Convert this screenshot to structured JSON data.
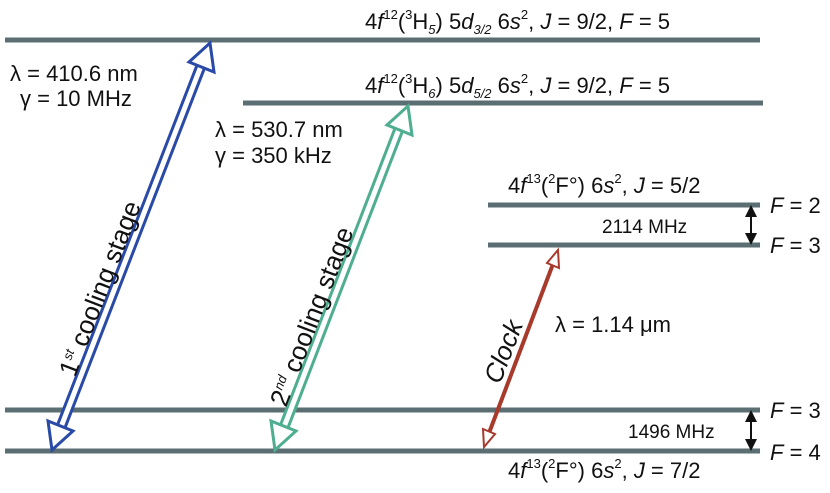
{
  "levels": [
    {
      "label": [
        "4",
        "f",
        "12",
        "(",
        "3",
        "H",
        "5",
        ") 5",
        "d",
        "3/2",
        " 6",
        "s",
        "2",
        ", ",
        "J",
        " = 9/2, ",
        "F",
        " = 5"
      ]
    },
    {
      "label": [
        "4",
        "f",
        "12",
        "(",
        "3",
        "H",
        "6",
        ") 5",
        "d",
        "5/2",
        " 6",
        "s",
        "2",
        ", ",
        "J",
        " = 9/2, ",
        "F",
        " = 5"
      ]
    },
    {
      "label": [
        "4",
        "f",
        "13",
        "(",
        "2",
        "F°",
        ") 6",
        "s",
        "2",
        ", ",
        "J",
        " = 5/2"
      ]
    },
    {
      "label": [
        "4",
        "f",
        "13",
        "(",
        "2",
        "F°",
        ") 6",
        "s",
        "2",
        ", ",
        "J",
        " = 7/2"
      ]
    }
  ],
  "hyperfine": [
    {
      "label": [
        "F",
        " = 2"
      ]
    },
    {
      "label": [
        "F",
        " = 3"
      ]
    },
    {
      "label": [
        "F",
        " = 3"
      ]
    },
    {
      "label": [
        "F",
        " = 4"
      ]
    }
  ],
  "splittings": [
    "2114 MHz",
    "1496 MHz"
  ],
  "transitions": [
    {
      "name": [
        "1",
        "st",
        " cooling stage"
      ],
      "wavelength": "λ = 410.6 nm",
      "linewidth": "γ = 10 MHz"
    },
    {
      "name": [
        "2",
        "nd",
        " cooling stage"
      ],
      "wavelength": "λ = 530.7 nm",
      "linewidth": "γ = 350 kHz"
    },
    {
      "name": "Clock",
      "wavelength": "λ = 1.14 μm"
    }
  ]
}
